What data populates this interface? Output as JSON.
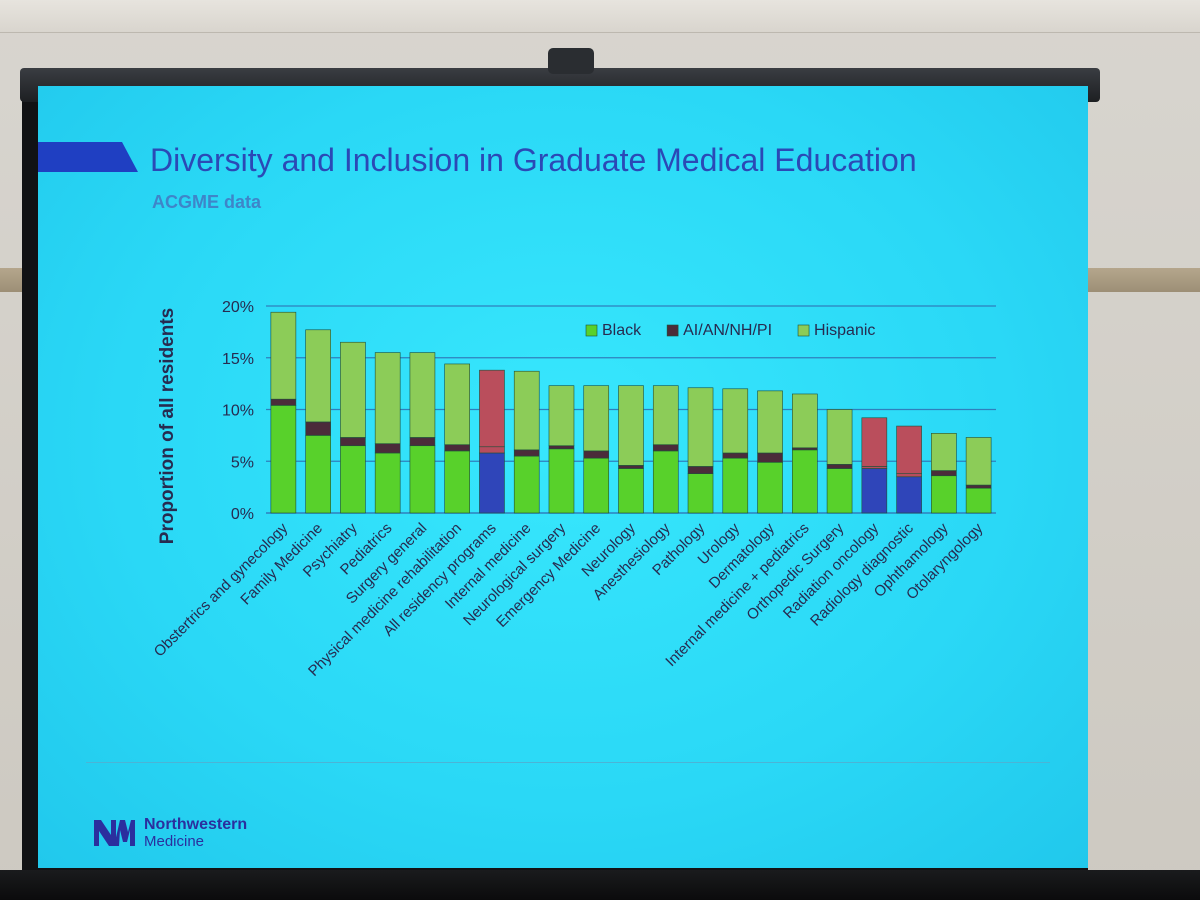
{
  "slide": {
    "title": "Diversity and Inclusion in Graduate Medical Education",
    "subtitle": "ACGME data"
  },
  "logo": {
    "line1": "Northwestern",
    "line2": "Medicine"
  },
  "colors": {
    "black": "#58d12b",
    "aian": "#4b2c3a",
    "hispanic": "#8ccc58",
    "highlight_black": "#2f45b9",
    "highlight_aian": "#b74d5d",
    "highlight_hispanic": "#ba4e5c",
    "gridline": "#2f7fbd",
    "axis_text": "#272b50"
  },
  "chart_data": {
    "type": "bar",
    "stacked": true,
    "title": "",
    "xlabel": "",
    "ylabel": "Proportion of all residents",
    "ylim": [
      0,
      20
    ],
    "yticks": [
      "0%",
      "5%",
      "10%",
      "15%",
      "20%"
    ],
    "legend_position": "top-right",
    "grid": true,
    "categories": [
      "Obstertrics and gynecology",
      "Family Medicine",
      "Psychiatry",
      "Pediatrics",
      "Surgery general",
      "Physical medicine rehabilitation",
      "All residency programs",
      "Internal medicine",
      "Neurological surgery",
      "Emergency Medicine",
      "Neurology",
      "Anesthesiology",
      "Pathology",
      "Urology",
      "Dermatology",
      "Internal medicine + pediatrics",
      "Orthopedic Surgery",
      "Radiation oncology",
      "Radiology diagnostic",
      "Ophthamology",
      "Otolaryngology"
    ],
    "highlighted_categories": [
      "All residency programs",
      "Radiation oncology",
      "Radiology diagnostic"
    ],
    "series": [
      {
        "name": "Black",
        "values": [
          10.4,
          7.5,
          6.5,
          5.8,
          6.5,
          6.0,
          5.8,
          5.5,
          6.2,
          5.3,
          4.3,
          6.0,
          3.8,
          5.3,
          4.9,
          6.1,
          4.3,
          4.3,
          3.5,
          3.6,
          2.4
        ]
      },
      {
        "name": "AI/AN/NH/PI",
        "values": [
          0.6,
          1.3,
          0.8,
          0.9,
          0.8,
          0.6,
          0.6,
          0.6,
          0.3,
          0.7,
          0.3,
          0.6,
          0.7,
          0.5,
          0.9,
          0.2,
          0.4,
          0.2,
          0.3,
          0.5,
          0.3
        ]
      },
      {
        "name": "Hispanic",
        "values": [
          8.4,
          8.9,
          9.2,
          8.8,
          8.2,
          7.8,
          7.4,
          7.6,
          5.8,
          6.3,
          7.7,
          5.7,
          7.6,
          6.2,
          6.0,
          5.2,
          5.3,
          4.7,
          4.6,
          3.6,
          4.6
        ]
      }
    ]
  }
}
